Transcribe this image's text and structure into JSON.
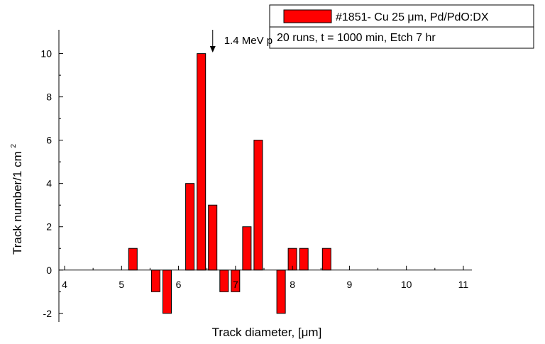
{
  "chart_data": {
    "type": "bar",
    "xlabel": "Track diameter, [μm]",
    "ylabel": "Track number/1 cm",
    "ylabel_superscript": "2",
    "xlim": [
      3.9,
      11.15
    ],
    "ylim": [
      -2.4,
      11.1
    ],
    "xticks": [
      4,
      5,
      6,
      7,
      8,
      9,
      10,
      11
    ],
    "yticks": [
      -2,
      0,
      2,
      4,
      6,
      8,
      10
    ],
    "bar_width": 0.15,
    "bar_color": "#ff0000",
    "series": [
      {
        "name": "#1851- Cu 25 μm, Pd/PdO:DX",
        "points": [
          {
            "x": 5.2,
            "y": 1
          },
          {
            "x": 5.6,
            "y": -1
          },
          {
            "x": 5.8,
            "y": -2
          },
          {
            "x": 6.2,
            "y": 4
          },
          {
            "x": 6.4,
            "y": 10
          },
          {
            "x": 6.6,
            "y": 3
          },
          {
            "x": 6.8,
            "y": -1
          },
          {
            "x": 7.0,
            "y": -1
          },
          {
            "x": 7.2,
            "y": 2
          },
          {
            "x": 7.4,
            "y": 6
          },
          {
            "x": 7.8,
            "y": -2
          },
          {
            "x": 8.0,
            "y": 1
          },
          {
            "x": 8.2,
            "y": 1
          },
          {
            "x": 8.6,
            "y": 1
          }
        ]
      }
    ],
    "legend": {
      "placement": "top-right",
      "lines": [
        "#1851- Cu 25 μm, Pd/PdO:DX",
        "20 runs, t = 1000 min, Etch 7 hr"
      ]
    },
    "annotation": {
      "text": "1.4 MeV p",
      "x": 6.6,
      "y": 10.05
    }
  }
}
